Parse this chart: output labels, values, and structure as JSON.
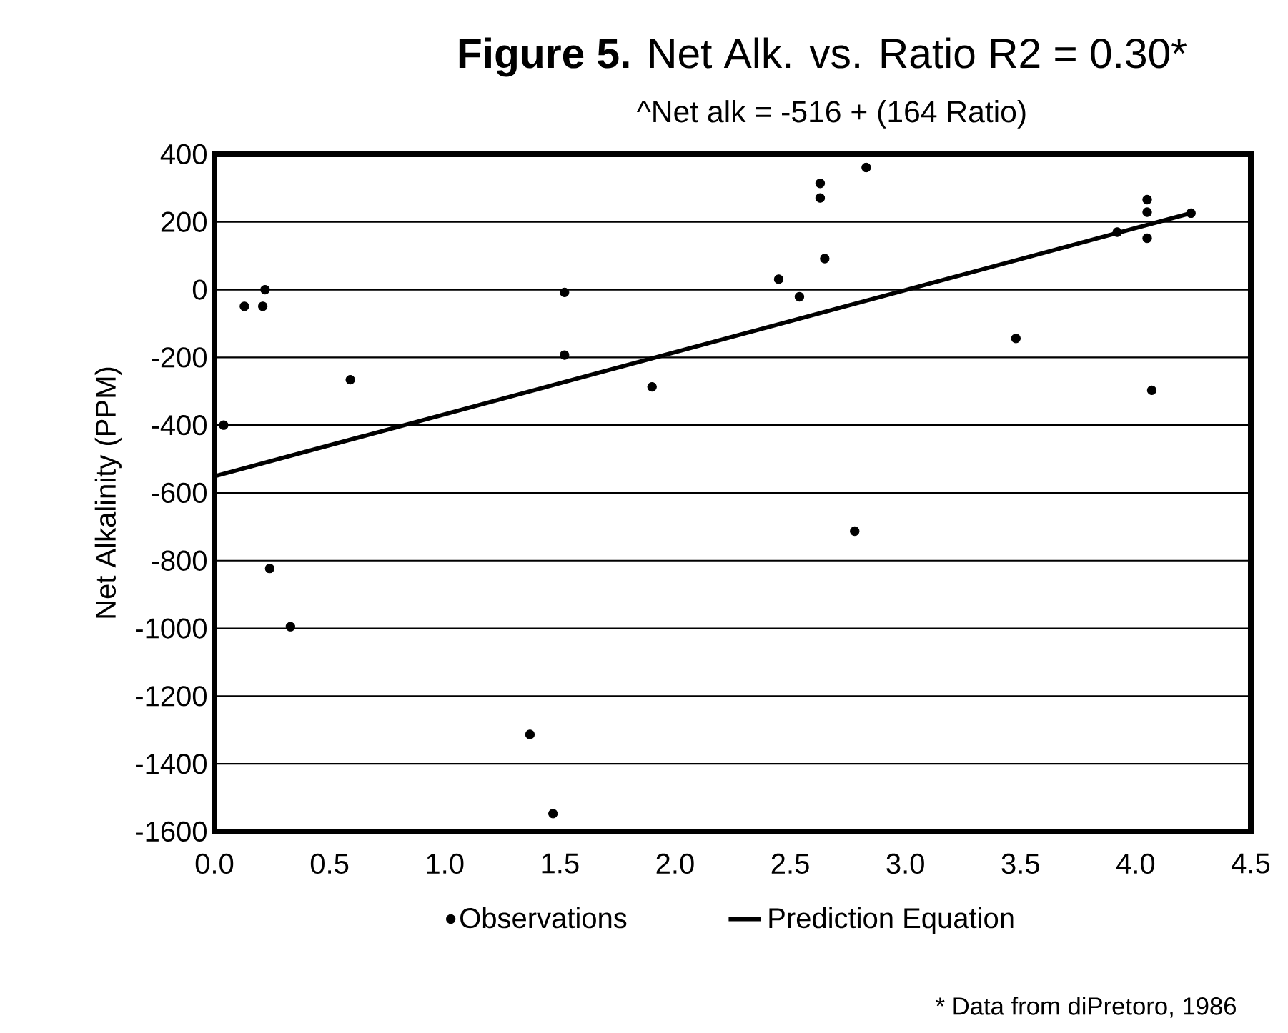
{
  "chart_data": {
    "type": "scatter",
    "title": "**Figure 5.** Net Alk. vs. Ratio R2 = 0.30*",
    "subtitle": "^Net alk = -516 + (164 Ratio)",
    "ylabel": "Net Alkalinity (PPM)",
    "xlim": [
      0,
      4.5
    ],
    "xticks": [
      {
        "value": 0,
        "label": "0.0"
      },
      0.5,
      {
        "value": 1,
        "label": "1.0"
      },
      1.5,
      {
        "value": 2,
        "label": "2.0"
      },
      2.5,
      {
        "value": 3,
        "label": "3.0"
      },
      3.5,
      {
        "value": 4,
        "label": "4.0"
      },
      4.5
    ],
    "ylim": [
      -1600,
      400
    ],
    "yticks": [
      -1600,
      -1400,
      -1200,
      -1000,
      -800,
      -600,
      -400,
      -200,
      0,
      200,
      400
    ],
    "grid": "y",
    "legend": "bottom",
    "series": [
      {
        "name": "Observations",
        "marker": "circle",
        "color": "#000000",
        "x": [
          0.04,
          0.13,
          0.21,
          0.22,
          0.24,
          0.33,
          0.59,
          1.37,
          1.47,
          1.52,
          1.52,
          1.9,
          2.45,
          2.54,
          2.63,
          2.63,
          2.65,
          2.78,
          2.83,
          3.48,
          3.92,
          4.05,
          4.05,
          4.05,
          4.07,
          4.24
        ],
        "values": [
          -400,
          -49,
          -49,
          0,
          -823,
          -995,
          -266,
          -1313,
          -1547,
          -8,
          -193,
          -287,
          31,
          -21,
          314,
          271,
          92,
          -713,
          361,
          -144,
          170,
          266,
          229,
          152,
          -297,
          226
        ]
      },
      {
        "name": "Prediction Equation",
        "type": "line",
        "marker": "none",
        "color": "#000000",
        "x": [
          0,
          4.24
        ],
        "values": [
          -551,
          226
        ]
      }
    ],
    "annotations": [
      "* Data from diPretoro, 1986"
    ]
  }
}
